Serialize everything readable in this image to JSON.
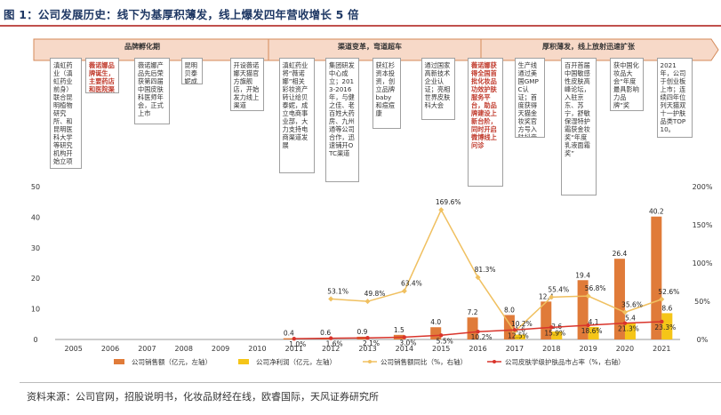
{
  "title": "图 1：公司发展历史：线下为基厚积薄发，线上爆发四年营收增长 5 倍",
  "source": "资料来源：公司官网，招股说明书，化妆品财经在线，欧睿国际，天风证券研究所",
  "phases": [
    "品牌孵化期",
    "渠道变革，弯道超车",
    "厚积薄发，线上放射迅速扩张"
  ],
  "timeline": [
    {
      "text": "滇虹药业（滇虹药业前身）联合昆明植物研究所、和昆明医科大学等研究机构开始立项",
      "highlight": false
    },
    {
      "text": "薇诺娜品牌诞生，主要药店和医院渠道。",
      "highlight": true
    },
    {
      "text": "薇诺娜产品先后荣获第四届中国皮肤科医师年会，正式上市",
      "highlight": false
    },
    {
      "text": "昆明贝泰妮成立",
      "highlight": false
    },
    {
      "text": "开设薇诺娜天猫官方旗舰店，开始发力线上渠道",
      "highlight": false
    },
    {
      "text": "滇虹药业将“薇诺娜”相关彩妆资产转让给贝泰妮，成立电商事业部，大力支持电商渠道发展",
      "highlight": false
    },
    {
      "text": "集团研发中心成立；2013-2016年，与健之佳、老百姓大药房、九州通等公司合作，迅速铺开OTC渠道",
      "highlight": false
    },
    {
      "text": "获红杉资本投资，创立品牌baby和痘痘康",
      "highlight": false
    },
    {
      "text": "通过国家高新技术企业认证；亮相世界皮肤科大会",
      "highlight": false
    },
    {
      "text": "薇诺娜获得全国首批化妆品功效护肤服务平台，助品牌建设上新台阶，同时开启微博线上问诊",
      "highlight": true
    },
    {
      "text": "生产线通过美国GMPC认证；首度获得天猫金妆奖官方号入驻抖音",
      "highlight": false
    },
    {
      "text": "百开首届中国敏感性皮肤高峰论坛，入驻京东、苏宁，舒敏保湿特护霜获金妆奖“年度乳液面霜奖”",
      "highlight": false
    },
    {
      "text": "获中国化妆品大会“年度最具影响力品牌”奖",
      "highlight": false
    },
    {
      "text": "2021年，公司于创业板上市；连续四年位列天猫双十一护肤品类TOP10。",
      "highlight": false
    }
  ],
  "chart_data": {
    "type": "bar",
    "categories": [
      "2005",
      "2006",
      "2007",
      "2008",
      "2009",
      "2010",
      "2011",
      "2012",
      "2013",
      "2014",
      "2015",
      "2016",
      "2017",
      "2018",
      "2019",
      "2020",
      "2021"
    ],
    "ylim_left": [
      0,
      50
    ],
    "yticks_left": [
      0,
      10,
      20,
      30,
      40,
      50
    ],
    "ylim_right": [
      0,
      200
    ],
    "yticks_right": [
      "0%",
      "50%",
      "100%",
      "150%",
      "200%"
    ],
    "series": [
      {
        "name": "公司销售额（亿元，左轴）",
        "type": "bar",
        "axis": "left",
        "color": "#e07b39",
        "values": [
          null,
          null,
          null,
          null,
          null,
          null,
          0.4,
          0.6,
          0.9,
          1.5,
          4.0,
          7.2,
          8.0,
          12.4,
          19.4,
          26.4,
          40.2
        ],
        "labels": [
          "",
          "",
          "",
          "",
          "",
          "",
          "0.4",
          "0.6",
          "0.9",
          "1.5",
          "4.0",
          "7.2",
          "8.0",
          "12.4",
          "19.4",
          "26.4",
          "40.2"
        ]
      },
      {
        "name": "公司净利润（亿元，左轴）",
        "type": "bar",
        "axis": "left",
        "color": "#f5c518",
        "values": [
          null,
          null,
          null,
          null,
          null,
          null,
          null,
          null,
          null,
          null,
          null,
          null,
          1.6,
          2.6,
          4.1,
          5.4,
          8.6
        ],
        "labels": [
          "",
          "",
          "",
          "",
          "",
          "",
          "",
          "",
          "",
          "",
          "",
          "",
          "1.6",
          "2.6",
          "4.1",
          "5.4",
          "8.6"
        ]
      },
      {
        "name": "公司销售额同比（%，右轴）",
        "type": "line",
        "axis": "right",
        "color": "#f0c060",
        "values": [
          null,
          null,
          null,
          null,
          null,
          null,
          null,
          53.1,
          49.8,
          63.4,
          169.6,
          81.3,
          10.2,
          55.4,
          56.8,
          35.6,
          52.6
        ],
        "labels": [
          "",
          "",
          "",
          "",
          "",
          "",
          "",
          "53.1%",
          "49.8%",
          "63.4%",
          "169.6%",
          "81.3%",
          "10.2%",
          "55.4%",
          "56.8%",
          "35.6%",
          "52.6%"
        ]
      },
      {
        "name": "公司皮肤学级护肤品市占率（%，右轴）",
        "type": "line",
        "axis": "right",
        "color": "#d9342b",
        "values": [
          null,
          null,
          null,
          null,
          null,
          null,
          1.0,
          1.6,
          2.1,
          3.0,
          5.5,
          10.2,
          12.5,
          15.9,
          18.6,
          21.3,
          23.3
        ],
        "labels": [
          "",
          "",
          "",
          "",
          "",
          "",
          "1.0%",
          "1.6%",
          "2.1%",
          "3.0%",
          "5.5%",
          "10.2%",
          "12.5%",
          "15.9%",
          "18.6%",
          "21.3%",
          "23.3%"
        ]
      }
    ]
  }
}
